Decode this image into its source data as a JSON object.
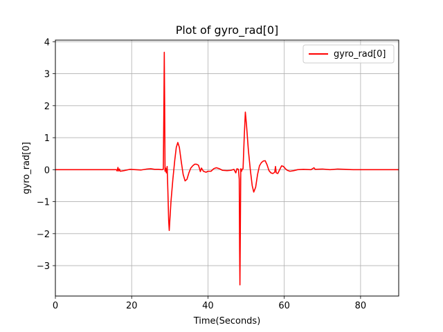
{
  "chart_data": {
    "type": "line",
    "title": "Plot of gyro_rad[0]",
    "xlabel": "Time(Seconds)",
    "ylabel": "gyro_rad[0]",
    "xlim": [
      0,
      90
    ],
    "ylim": [
      -3.95,
      4.05
    ],
    "xticks": [
      0,
      20,
      40,
      60,
      80
    ],
    "yticks": [
      -3,
      -2,
      -1,
      0,
      1,
      2,
      3,
      4
    ],
    "grid": true,
    "legend_position": "top-right",
    "series": [
      {
        "name": "gyro_rad[0]",
        "color": "#ff0000",
        "points": [
          [
            0,
            0
          ],
          [
            16.0,
            0
          ],
          [
            16.2,
            -0.04
          ],
          [
            16.4,
            0.07
          ],
          [
            16.6,
            -0.04
          ],
          [
            16.8,
            0.02
          ],
          [
            17.0,
            -0.05
          ],
          [
            18.0,
            -0.03
          ],
          [
            19.5,
            0.01
          ],
          [
            21.0,
            0
          ],
          [
            22.5,
            -0.01
          ],
          [
            24.0,
            0.02
          ],
          [
            25.0,
            0.03
          ],
          [
            26.0,
            0.01
          ],
          [
            27.0,
            0.01
          ],
          [
            28.0,
            0
          ],
          [
            28.3,
            0.02
          ],
          [
            28.45,
            2.0
          ],
          [
            28.55,
            3.67
          ],
          [
            28.65,
            2.0
          ],
          [
            28.75,
            -0.05
          ],
          [
            28.9,
            0.05
          ],
          [
            29.1,
            -0.1
          ],
          [
            29.3,
            0.1
          ],
          [
            29.5,
            -0.7
          ],
          [
            29.7,
            -1.6
          ],
          [
            29.85,
            -1.9
          ],
          [
            30.0,
            -1.6
          ],
          [
            30.3,
            -1.0
          ],
          [
            30.8,
            -0.3
          ],
          [
            31.3,
            0.3
          ],
          [
            31.7,
            0.7
          ],
          [
            32.1,
            0.85
          ],
          [
            32.5,
            0.7
          ],
          [
            33.0,
            0.25
          ],
          [
            33.5,
            -0.15
          ],
          [
            34.0,
            -0.35
          ],
          [
            34.5,
            -0.3
          ],
          [
            35.0,
            -0.1
          ],
          [
            35.5,
            0.05
          ],
          [
            36.0,
            0.12
          ],
          [
            36.5,
            0.17
          ],
          [
            37.0,
            0.17
          ],
          [
            37.5,
            0.14
          ],
          [
            37.8,
            0.03
          ],
          [
            38.0,
            -0.06
          ],
          [
            38.3,
            0.05
          ],
          [
            38.8,
            -0.05
          ],
          [
            39.5,
            -0.08
          ],
          [
            40.0,
            -0.05
          ],
          [
            40.8,
            -0.05
          ],
          [
            41.5,
            0.03
          ],
          [
            42.2,
            0.06
          ],
          [
            43.0,
            0.03
          ],
          [
            43.8,
            -0.02
          ],
          [
            45.0,
            -0.03
          ],
          [
            46.0,
            -0.02
          ],
          [
            46.8,
            0.01
          ],
          [
            47.3,
            -0.1
          ],
          [
            47.6,
            0.03
          ],
          [
            48.0,
            0.01
          ],
          [
            48.2,
            -0.3
          ],
          [
            48.3,
            -2.5
          ],
          [
            48.38,
            -3.6
          ],
          [
            48.48,
            -2.0
          ],
          [
            48.6,
            0.03
          ],
          [
            48.8,
            -0.05
          ],
          [
            49.0,
            0.02
          ],
          [
            49.2,
            0.03
          ],
          [
            49.5,
            1.0
          ],
          [
            49.8,
            1.8
          ],
          [
            50.1,
            1.4
          ],
          [
            50.6,
            0.6
          ],
          [
            51.1,
            0.0
          ],
          [
            51.6,
            -0.5
          ],
          [
            52.0,
            -0.7
          ],
          [
            52.5,
            -0.55
          ],
          [
            53.0,
            -0.15
          ],
          [
            53.5,
            0.12
          ],
          [
            54.0,
            0.22
          ],
          [
            54.5,
            0.27
          ],
          [
            55.0,
            0.28
          ],
          [
            55.5,
            0.15
          ],
          [
            56.0,
            -0.03
          ],
          [
            56.5,
            -0.1
          ],
          [
            57.0,
            -0.12
          ],
          [
            57.5,
            -0.08
          ],
          [
            57.7,
            0.1
          ],
          [
            57.9,
            -0.1
          ],
          [
            58.3,
            -0.12
          ],
          [
            58.8,
            0.0
          ],
          [
            59.3,
            0.12
          ],
          [
            59.8,
            0.1
          ],
          [
            60.3,
            0.03
          ],
          [
            60.8,
            -0.02
          ],
          [
            61.5,
            -0.05
          ],
          [
            62.5,
            -0.03
          ],
          [
            63.5,
            0.0
          ],
          [
            65.0,
            0.01
          ],
          [
            67.0,
            0.0
          ],
          [
            67.8,
            0.06
          ],
          [
            68.1,
            0.01
          ],
          [
            70.0,
            0.02
          ],
          [
            72.0,
            0.0
          ],
          [
            74.0,
            0.02
          ],
          [
            76.0,
            0.01
          ],
          [
            78.0,
            0.0
          ],
          [
            80.0,
            0
          ],
          [
            85.0,
            0
          ],
          [
            90.0,
            0
          ]
        ]
      }
    ]
  }
}
